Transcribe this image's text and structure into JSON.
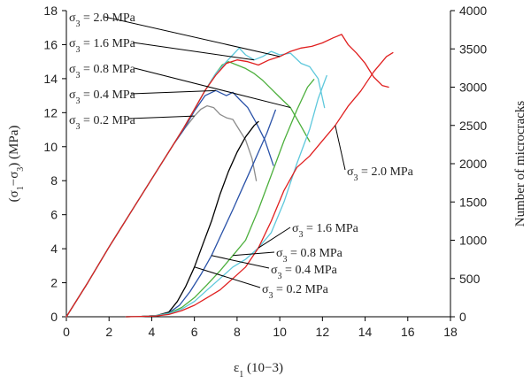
{
  "chart_data": {
    "type": "line",
    "xlabel": "ε1 (10−3)",
    "ylabel_left": "(σ1−σ3) (MPa)",
    "ylabel_right": "Number of microcracks",
    "xlim": [
      0,
      18
    ],
    "ylim_left": [
      0,
      18
    ],
    "ylim_right": [
      0,
      4000
    ],
    "x_ticks": [
      0,
      2,
      4,
      6,
      8,
      10,
      12,
      14,
      16,
      18
    ],
    "y_ticks_left": [
      0,
      2,
      4,
      6,
      8,
      10,
      12,
      14,
      16,
      18
    ],
    "y_ticks_right": [
      0,
      500,
      1000,
      1500,
      2000,
      2500,
      3000,
      3500,
      4000
    ],
    "grid": false,
    "series": [
      {
        "name": "σ3 = 0.2 MPa",
        "color": "#8c8c8c",
        "group": "stress",
        "axis": "left",
        "x": [
          0,
          1,
          2,
          3,
          4,
          5,
          5.5,
          6,
          6.3,
          6.6,
          6.9,
          7.2,
          7.5,
          7.8,
          8.1,
          8.4,
          8.7,
          8.9
        ],
        "y": [
          0,
          2,
          4.1,
          6.1,
          8.1,
          10.1,
          11.0,
          11.8,
          12.2,
          12.4,
          12.3,
          11.9,
          11.7,
          11.6,
          11.0,
          10.4,
          9.3,
          8.0
        ]
      },
      {
        "name": "σ3 = 0.4 MPa",
        "color": "#2a52a8",
        "group": "stress",
        "axis": "left",
        "x": [
          0,
          1,
          2,
          3,
          4,
          5,
          5.5,
          6,
          6.5,
          7,
          7.5,
          7.8,
          8.1,
          8.5,
          8.9,
          9.3,
          9.7
        ],
        "y": [
          0,
          2,
          4.1,
          6.1,
          8.1,
          10.1,
          11.0,
          12.1,
          13.0,
          13.3,
          13.0,
          13.2,
          12.8,
          12.3,
          11.4,
          10.4,
          8.9
        ]
      },
      {
        "name": "σ3 = 0.8 MPa",
        "color": "#4caf3c",
        "group": "stress",
        "axis": "left",
        "x": [
          0,
          1,
          2,
          3,
          4,
          5,
          5.5,
          6,
          6.5,
          7,
          7.3,
          7.6,
          8,
          8.4,
          8.8,
          9.2,
          9.6,
          10,
          10.5,
          11,
          11.4
        ],
        "y": [
          0,
          2,
          4.1,
          6.1,
          8.1,
          10.1,
          11.1,
          12.2,
          13.3,
          14.3,
          14.8,
          15.0,
          14.8,
          14.6,
          14.3,
          13.9,
          13.4,
          12.9,
          12.3,
          11.2,
          10.3
        ]
      },
      {
        "name": "σ3 = 1.6 MPa",
        "color": "#5ec8dc",
        "group": "stress",
        "axis": "left",
        "x": [
          0,
          1,
          2,
          3,
          4,
          5,
          5.5,
          6,
          6.5,
          7,
          7.5,
          7.8,
          8.1,
          8.4,
          8.8,
          9.2,
          9.6,
          10,
          10.5,
          11,
          11.4,
          11.8,
          12.1
        ],
        "y": [
          0,
          2,
          4.1,
          6.1,
          8.1,
          10.1,
          11.1,
          12.2,
          13.3,
          14.3,
          15.0,
          15.4,
          15.8,
          15.4,
          15.1,
          15.3,
          15.6,
          15.4,
          15.5,
          14.9,
          14.7,
          14.0,
          12.3
        ]
      },
      {
        "name": "σ3 = 2.0 MPa",
        "color": "#e01f1f",
        "group": "stress",
        "axis": "left",
        "x": [
          0,
          1,
          2,
          3,
          4,
          5,
          5.5,
          6,
          6.5,
          7,
          7.5,
          8,
          8.5,
          9,
          9.5,
          10,
          10.5,
          11,
          11.5,
          12,
          12.5,
          12.9,
          13.2,
          13.6,
          14,
          14.4,
          14.8,
          15.1
        ],
        "y": [
          0,
          2,
          4.1,
          6.1,
          8.1,
          10.1,
          11.1,
          12.2,
          13.3,
          14.2,
          14.9,
          15.1,
          15.0,
          14.8,
          15.1,
          15.3,
          15.6,
          15.8,
          15.9,
          16.1,
          16.4,
          16.6,
          16.0,
          15.5,
          14.9,
          14.1,
          13.6,
          13.5
        ]
      },
      {
        "name": "σ3 = 0.2 MPa",
        "color": "#000000",
        "group": "microcracks",
        "axis": "right",
        "x": [
          2.8,
          3.5,
          4.2,
          4.8,
          5.2,
          5.6,
          6.0,
          6.4,
          6.8,
          7.2,
          7.6,
          8.0,
          8.4,
          8.8,
          9.0
        ],
        "y": [
          0,
          5,
          15,
          60,
          200,
          400,
          650,
          950,
          1250,
          1600,
          1900,
          2150,
          2350,
          2500,
          2550
        ]
      },
      {
        "name": "σ3 = 0.4 MPa",
        "color": "#2a52a8",
        "group": "microcracks",
        "axis": "right",
        "x": [
          2.8,
          3.5,
          4.2,
          4.8,
          5.3,
          5.8,
          6.3,
          6.8,
          7.3,
          7.8,
          8.2,
          8.6,
          9.0,
          9.4,
          9.8
        ],
        "y": [
          0,
          5,
          15,
          50,
          150,
          330,
          550,
          800,
          1100,
          1400,
          1650,
          1900,
          2150,
          2400,
          2700
        ]
      },
      {
        "name": "σ3 = 0.8 MPa",
        "color": "#4caf3c",
        "group": "microcracks",
        "axis": "right",
        "x": [
          2.8,
          3.5,
          4.2,
          4.8,
          5.4,
          6.0,
          6.6,
          7.2,
          7.8,
          8.4,
          9.0,
          9.6,
          10.2,
          10.8,
          11.3,
          11.6
        ],
        "y": [
          0,
          5,
          15,
          45,
          120,
          250,
          420,
          600,
          800,
          1000,
          1400,
          1850,
          2300,
          2700,
          3000,
          3100
        ]
      },
      {
        "name": "σ3 = 1.6 MPa",
        "color": "#5ec8dc",
        "group": "microcracks",
        "axis": "right",
        "x": [
          2.8,
          3.5,
          4.2,
          4.8,
          5.4,
          6.0,
          6.6,
          7.2,
          7.8,
          8.4,
          9.0,
          9.6,
          10.2,
          10.8,
          11.4,
          11.8,
          12.2
        ],
        "y": [
          0,
          5,
          15,
          40,
          100,
          200,
          350,
          500,
          650,
          750,
          900,
          1100,
          1500,
          2000,
          2450,
          2850,
          3150
        ]
      },
      {
        "name": "σ3 = 2.0 MPa",
        "color": "#e01f1f",
        "group": "microcracks",
        "axis": "right",
        "x": [
          2.8,
          3.5,
          4.2,
          4.8,
          5.4,
          6.0,
          6.6,
          7.2,
          7.8,
          8.4,
          9.0,
          9.6,
          10.2,
          10.8,
          11.4,
          12.0,
          12.6,
          13.2,
          13.8,
          14.4,
          15.0,
          15.3
        ],
        "y": [
          0,
          5,
          10,
          30,
          80,
          150,
          250,
          350,
          500,
          650,
          900,
          1250,
          1650,
          1950,
          2100,
          2300,
          2500,
          2750,
          2950,
          3200,
          3400,
          3450
        ]
      }
    ],
    "annotations": [
      {
        "text": "σ3 = 2.0 MPa",
        "group": "stress"
      },
      {
        "text": "σ3 = 1.6 MPa",
        "group": "stress"
      },
      {
        "text": "σ3 = 0.8 MPa",
        "group": "stress"
      },
      {
        "text": "σ3 = 0.4 MPa",
        "group": "stress"
      },
      {
        "text": "σ3 = 0.2 MPa",
        "group": "stress"
      },
      {
        "text": "σ3 = 2.0 MPa",
        "group": "microcracks"
      },
      {
        "text": "σ3 = 1.6 MPa",
        "group": "microcracks"
      },
      {
        "text": "σ3 = 0.8 MPa",
        "group": "microcracks"
      },
      {
        "text": "σ3 = 0.4 MPa",
        "group": "microcracks"
      },
      {
        "text": "σ3 = 0.2 MPa",
        "group": "microcracks"
      }
    ]
  }
}
